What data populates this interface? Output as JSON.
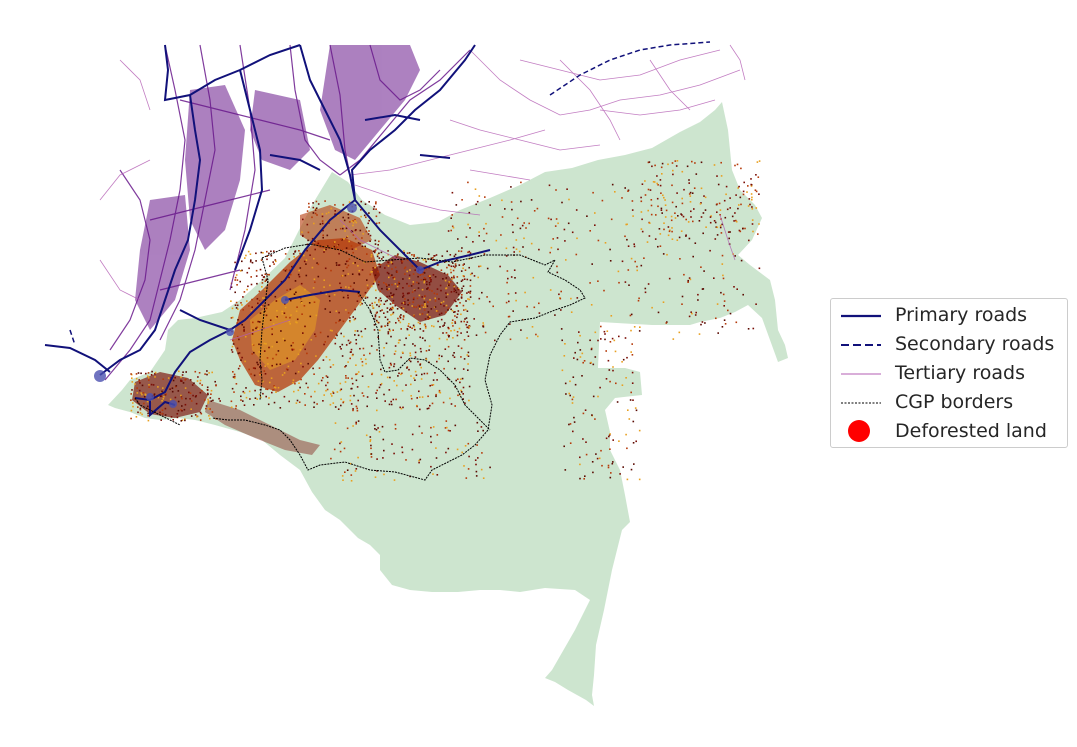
{
  "legend": {
    "items": [
      {
        "label": "Primary roads",
        "style": "solid-thick",
        "color": "#11117a"
      },
      {
        "label": "Secondary roads",
        "style": "dashed",
        "color": "#11117a"
      },
      {
        "label": "Tertiary roads",
        "style": "solid-thin",
        "color": "#b35db3"
      },
      {
        "label": "CGP borders",
        "style": "dotted",
        "color": "#000000"
      },
      {
        "label": "Deforested land",
        "style": "circle",
        "color": "#ff0000"
      }
    ]
  },
  "colors": {
    "region_fill": "#cde5cf",
    "primary_roads": "#11117a",
    "tertiary_roads_dense": "#6a1a8c",
    "tertiary_roads": "#b35db3",
    "deforestation_dark": "#7a0d05",
    "deforestation_mid": "#b53a0a",
    "deforestation_light": "#e8a020",
    "cgp_border": "#000000"
  }
}
